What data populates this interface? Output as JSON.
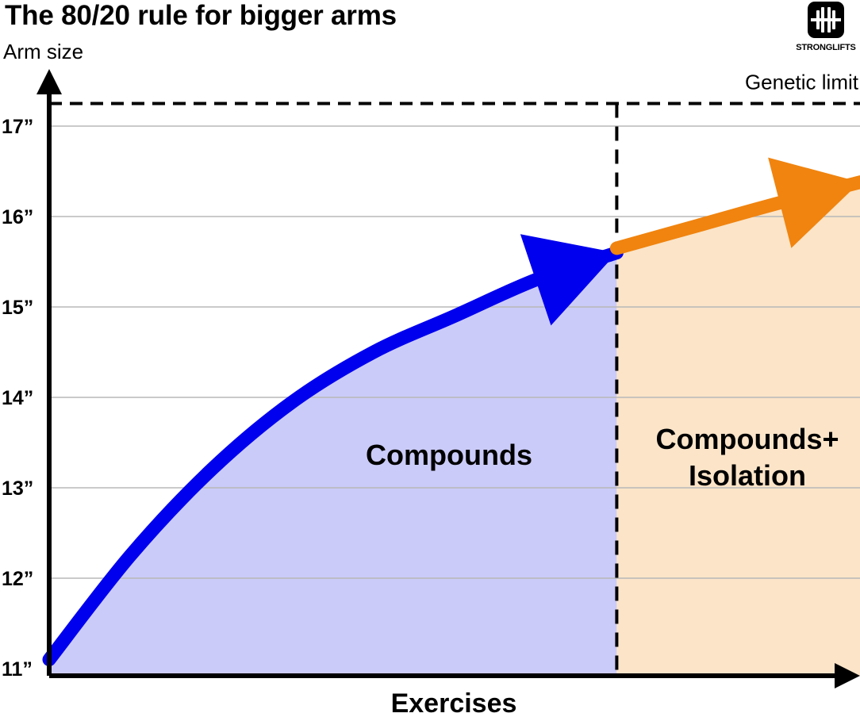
{
  "chart_data": {
    "type": "area",
    "title": "The 80/20 rule for bigger arms",
    "xlabel": "Exercises",
    "ylabel": "Arm size",
    "y_ticks": [
      "11”",
      "12”",
      "13”",
      "14”",
      "15”",
      "16”",
      "17”"
    ],
    "y_tick_values": [
      11,
      12,
      13,
      14,
      15,
      16,
      17
    ],
    "ylim": [
      11,
      17.8
    ],
    "xlim": [
      0,
      100
    ],
    "grid": true,
    "genetic_limit": {
      "label": "Genetic limit",
      "value": 17.25
    },
    "split_x": 70,
    "regions": [
      {
        "label": "Compounds",
        "color": "#cbcbf9"
      },
      {
        "label_lines": [
          "Compounds+",
          "Isolation"
        ],
        "color": "#fbe4c8"
      }
    ],
    "series": [
      {
        "color": "#0000ee",
        "x": [
          0,
          10,
          20,
          30,
          40,
          50,
          60,
          70
        ],
        "y": [
          11.1,
          12.25,
          13.2,
          13.95,
          14.5,
          14.9,
          15.3,
          15.6
        ]
      },
      {
        "color": "#f0840f",
        "x": [
          70,
          80,
          90,
          100
        ],
        "y": [
          15.65,
          15.9,
          16.15,
          16.38
        ]
      }
    ]
  },
  "brand": {
    "name": "STRONGLIFTS"
  }
}
